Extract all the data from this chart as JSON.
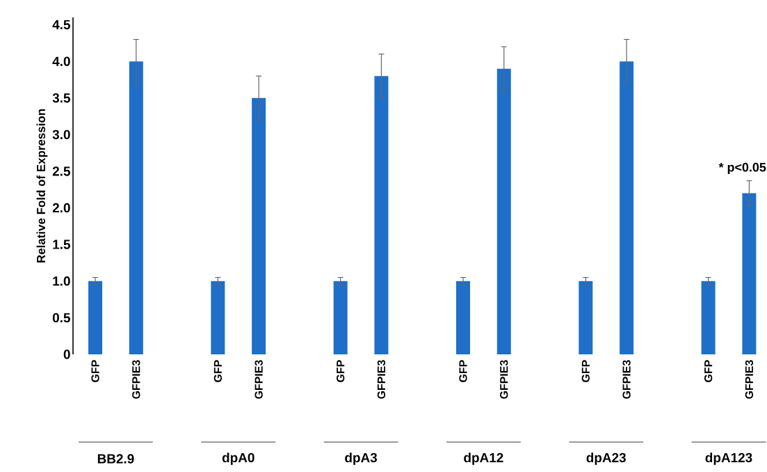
{
  "chart_data": {
    "type": "bar",
    "ylabel": "Relative Fold of Expression",
    "categories": [
      "GFP",
      "GFPIE3",
      null,
      "GFP",
      "GFPIE3",
      null,
      "GFP",
      "GFPIE3",
      null,
      "GFP",
      "GFPIE3",
      null,
      "GFP",
      "GFPIE3",
      null,
      "GFP",
      "GFPIE3"
    ],
    "values": [
      1.0,
      4.0,
      null,
      1.0,
      3.5,
      null,
      1.0,
      3.8,
      null,
      1.0,
      3.9,
      null,
      1.0,
      4.0,
      null,
      1.0,
      2.2
    ],
    "errors": [
      0.05,
      0.3,
      null,
      0.05,
      0.3,
      null,
      0.05,
      0.3,
      null,
      0.05,
      0.3,
      null,
      0.05,
      0.3,
      null,
      0.05,
      0.17
    ],
    "color": "#1f6fc8",
    "ylim": [
      0,
      4.6
    ],
    "yticks": [
      0,
      0.5,
      {
        "value": 1,
        "label": "1.0"
      },
      1.5,
      {
        "value": 2,
        "label": "2.0"
      },
      2.5,
      {
        "value": 3,
        "label": "3.0"
      },
      3.5,
      {
        "value": 4,
        "label": "4.0"
      },
      4.5
    ],
    "annotations": [
      "BB2.9",
      "dpA0",
      "dpA3",
      "dpA12",
      "dpA23",
      "dpA123",
      "* p<0.05"
    ],
    "grid": false
  }
}
